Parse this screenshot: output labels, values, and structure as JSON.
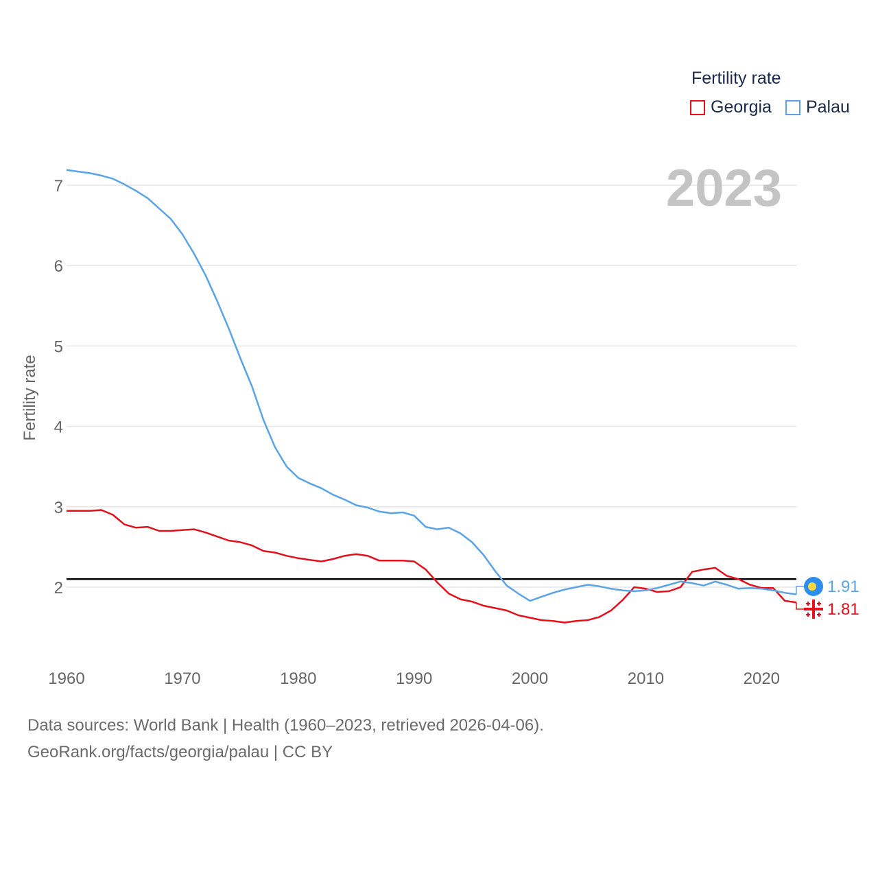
{
  "chart_data": {
    "type": "line",
    "year_label": "2023",
    "legend_title": "Fertility rate",
    "ylabel": "Fertility rate",
    "xlim": [
      1960,
      2023
    ],
    "ylim": [
      1.2,
      7.5
    ],
    "x_ticks": [
      1960,
      1970,
      1980,
      1990,
      2000,
      2010,
      2020
    ],
    "y_ticks": [
      2,
      3,
      4,
      5,
      6,
      7
    ],
    "reference_line": 2.1,
    "series": [
      {
        "name": "Georgia",
        "color": "#e3101b",
        "end_label": "1.81",
        "flag_icon": "georgia-flag-icon",
        "x": [
          1960,
          1961,
          1962,
          1963,
          1964,
          1965,
          1966,
          1967,
          1968,
          1969,
          1970,
          1971,
          1972,
          1973,
          1974,
          1975,
          1976,
          1977,
          1978,
          1979,
          1980,
          1981,
          1982,
          1983,
          1984,
          1985,
          1986,
          1987,
          1988,
          1989,
          1990,
          1991,
          1992,
          1993,
          1994,
          1995,
          1996,
          1997,
          1998,
          1999,
          2000,
          2001,
          2002,
          2003,
          2004,
          2005,
          2006,
          2007,
          2008,
          2009,
          2010,
          2011,
          2012,
          2013,
          2014,
          2015,
          2016,
          2017,
          2018,
          2019,
          2020,
          2021,
          2022,
          2023
        ],
        "values": [
          2.95,
          2.95,
          2.95,
          2.96,
          2.9,
          2.78,
          2.74,
          2.75,
          2.7,
          2.7,
          2.71,
          2.72,
          2.68,
          2.63,
          2.58,
          2.56,
          2.52,
          2.45,
          2.43,
          2.39,
          2.36,
          2.34,
          2.32,
          2.35,
          2.39,
          2.41,
          2.39,
          2.33,
          2.33,
          2.33,
          2.32,
          2.22,
          2.06,
          1.92,
          1.85,
          1.82,
          1.77,
          1.74,
          1.71,
          1.65,
          1.62,
          1.59,
          1.58,
          1.56,
          1.58,
          1.59,
          1.63,
          1.71,
          1.84,
          2.0,
          1.98,
          1.94,
          1.95,
          2.0,
          2.19,
          2.22,
          2.24,
          2.14,
          2.1,
          2.03,
          1.99,
          1.99,
          1.83,
          1.81
        ]
      },
      {
        "name": "Palau",
        "color": "#5aa4e6",
        "end_label": "1.91",
        "flag_icon": "palau-flag-icon",
        "x": [
          1960,
          1961,
          1962,
          1963,
          1964,
          1965,
          1966,
          1967,
          1968,
          1969,
          1970,
          1971,
          1972,
          1973,
          1974,
          1975,
          1976,
          1977,
          1978,
          1979,
          1980,
          1981,
          1982,
          1983,
          1984,
          1985,
          1986,
          1987,
          1988,
          1989,
          1990,
          1991,
          1992,
          1993,
          1994,
          1995,
          1996,
          1997,
          1998,
          1999,
          2000,
          2001,
          2002,
          2003,
          2004,
          2005,
          2006,
          2007,
          2008,
          2009,
          2010,
          2011,
          2012,
          2013,
          2014,
          2015,
          2016,
          2017,
          2018,
          2019,
          2020,
          2021,
          2022,
          2023
        ],
        "values": [
          7.19,
          7.17,
          7.15,
          7.12,
          7.08,
          7.01,
          6.93,
          6.84,
          6.71,
          6.58,
          6.39,
          6.15,
          5.88,
          5.56,
          5.22,
          4.85,
          4.5,
          4.08,
          3.74,
          3.5,
          3.36,
          3.29,
          3.23,
          3.15,
          3.09,
          3.02,
          2.99,
          2.94,
          2.92,
          2.93,
          2.89,
          2.75,
          2.72,
          2.74,
          2.67,
          2.56,
          2.4,
          2.2,
          2.02,
          1.92,
          1.83,
          1.88,
          1.93,
          1.97,
          2.0,
          2.03,
          2.01,
          1.98,
          1.96,
          1.95,
          1.96,
          1.99,
          2.03,
          2.07,
          2.05,
          2.02,
          2.07,
          2.03,
          1.98,
          1.99,
          1.98,
          1.96,
          1.93,
          1.91
        ]
      }
    ]
  },
  "footer": {
    "sources": "Data sources: World Bank | Health (1960–2023, retrieved 2026-04-06).",
    "credit": "GeoRank.org/facts/georgia/palau | CC BY"
  }
}
